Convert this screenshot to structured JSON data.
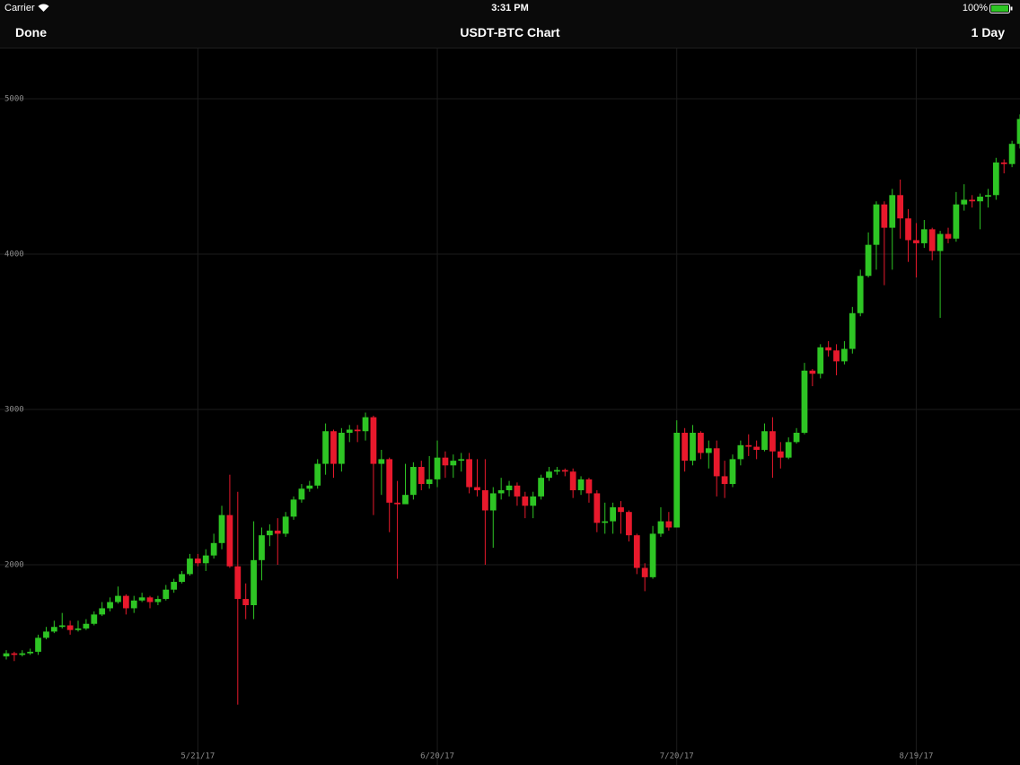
{
  "status_bar": {
    "carrier": "Carrier",
    "time": "3:31 PM",
    "battery": "100%"
  },
  "nav_bar": {
    "left_button": "Done",
    "title": "USDT-BTC Chart",
    "right_button": "1 Day"
  },
  "chart_data": {
    "type": "candlestick",
    "x": [
      "2017-04-27",
      "2017-04-28",
      "2017-04-29",
      "2017-04-30",
      "2017-05-01",
      "2017-05-02",
      "2017-05-03",
      "2017-05-04",
      "2017-05-05",
      "2017-05-06",
      "2017-05-07",
      "2017-05-08",
      "2017-05-09",
      "2017-05-10",
      "2017-05-11",
      "2017-05-12",
      "2017-05-13",
      "2017-05-14",
      "2017-05-15",
      "2017-05-16",
      "2017-05-17",
      "2017-05-18",
      "2017-05-19",
      "2017-05-20",
      "2017-05-21",
      "2017-05-22",
      "2017-05-23",
      "2017-05-24",
      "2017-05-25",
      "2017-05-26",
      "2017-05-27",
      "2017-05-28",
      "2017-05-29",
      "2017-05-30",
      "2017-05-31",
      "2017-06-01",
      "2017-06-02",
      "2017-06-03",
      "2017-06-04",
      "2017-06-05",
      "2017-06-06",
      "2017-06-07",
      "2017-06-08",
      "2017-06-09",
      "2017-06-10",
      "2017-06-11",
      "2017-06-12",
      "2017-06-13",
      "2017-06-14",
      "2017-06-15",
      "2017-06-16",
      "2017-06-17",
      "2017-06-18",
      "2017-06-19",
      "2017-06-20",
      "2017-06-21",
      "2017-06-22",
      "2017-06-23",
      "2017-06-24",
      "2017-06-25",
      "2017-06-26",
      "2017-06-27",
      "2017-06-28",
      "2017-06-29",
      "2017-06-30",
      "2017-07-01",
      "2017-07-02",
      "2017-07-03",
      "2017-07-04",
      "2017-07-05",
      "2017-07-06",
      "2017-07-07",
      "2017-07-08",
      "2017-07-09",
      "2017-07-10",
      "2017-07-11",
      "2017-07-12",
      "2017-07-13",
      "2017-07-14",
      "2017-07-15",
      "2017-07-16",
      "2017-07-17",
      "2017-07-18",
      "2017-07-19",
      "2017-07-20",
      "2017-07-21",
      "2017-07-22",
      "2017-07-23",
      "2017-07-24",
      "2017-07-25",
      "2017-07-26",
      "2017-07-27",
      "2017-07-28",
      "2017-07-29",
      "2017-07-30",
      "2017-07-31",
      "2017-08-01",
      "2017-08-02",
      "2017-08-03",
      "2017-08-04",
      "2017-08-05",
      "2017-08-06",
      "2017-08-07",
      "2017-08-08",
      "2017-08-09",
      "2017-08-10",
      "2017-08-11",
      "2017-08-12",
      "2017-08-13",
      "2017-08-14",
      "2017-08-15",
      "2017-08-16",
      "2017-08-17",
      "2017-08-18",
      "2017-08-19",
      "2017-08-20",
      "2017-08-21",
      "2017-08-22",
      "2017-08-23",
      "2017-08-24",
      "2017-08-25",
      "2017-08-26",
      "2017-08-27",
      "2017-08-28",
      "2017-08-29",
      "2017-08-30",
      "2017-08-31",
      "2017-09-01"
    ],
    "open": [
      1410,
      1430,
      1420,
      1430,
      1440,
      1530,
      1570,
      1600,
      1610,
      1580,
      1590,
      1620,
      1680,
      1720,
      1760,
      1800,
      1720,
      1770,
      1790,
      1760,
      1780,
      1840,
      1890,
      1940,
      2040,
      2010,
      2060,
      2140,
      2320,
      1990,
      1780,
      1740,
      2030,
      2190,
      2220,
      2200,
      2310,
      2420,
      2490,
      2510,
      2650,
      2860,
      2650,
      2850,
      2870,
      2860,
      2950,
      2650,
      2680,
      2400,
      2390,
      2450,
      2630,
      2520,
      2550,
      2690,
      2640,
      2670,
      2680,
      2500,
      2480,
      2350,
      2460,
      2480,
      2510,
      2440,
      2380,
      2440,
      2560,
      2600,
      2610,
      2600,
      2480,
      2550,
      2460,
      2270,
      2280,
      2370,
      2340,
      2190,
      1980,
      1920,
      2200,
      2280,
      2240,
      2850,
      2670,
      2850,
      2720,
      2750,
      2570,
      2520,
      2680,
      2770,
      2760,
      2740,
      2860,
      2730,
      2690,
      2790,
      2850,
      3250,
      3230,
      3400,
      3380,
      3310,
      3390,
      3620,
      3860,
      4060,
      4320,
      4170,
      4380,
      4230,
      4090,
      4070,
      4160,
      4020,
      4130,
      4100,
      4320,
      4350,
      4340,
      4370,
      4380,
      4590,
      4580,
      4710
    ],
    "high": [
      1450,
      1440,
      1450,
      1460,
      1550,
      1600,
      1640,
      1690,
      1640,
      1640,
      1650,
      1700,
      1760,
      1790,
      1860,
      1810,
      1800,
      1820,
      1800,
      1800,
      1870,
      1910,
      1960,
      2070,
      2070,
      2100,
      2200,
      2380,
      2580,
      2470,
      1880,
      2280,
      2240,
      2260,
      2300,
      2340,
      2440,
      2520,
      2540,
      2680,
      2910,
      2870,
      2880,
      2900,
      2900,
      2980,
      2960,
      2740,
      2690,
      2540,
      2650,
      2660,
      2670,
      2700,
      2800,
      2730,
      2710,
      2720,
      2720,
      2680,
      2680,
      2500,
      2560,
      2540,
      2530,
      2470,
      2470,
      2580,
      2630,
      2630,
      2620,
      2620,
      2570,
      2560,
      2480,
      2400,
      2400,
      2410,
      2350,
      2200,
      2010,
      2250,
      2370,
      2340,
      2930,
      2880,
      2900,
      2860,
      2800,
      2800,
      2670,
      2710,
      2800,
      2840,
      2800,
      2910,
      2950,
      2790,
      2820,
      2880,
      3300,
      3260,
      3420,
      3440,
      3420,
      3440,
      3660,
      3900,
      4140,
      4340,
      4340,
      4420,
      4480,
      4290,
      4200,
      4220,
      4170,
      4150,
      4170,
      4400,
      4450,
      4380,
      4390,
      4420,
      4620,
      4610,
      4730,
      4900
    ],
    "low": [
      1390,
      1380,
      1410,
      1420,
      1420,
      1520,
      1560,
      1590,
      1550,
      1570,
      1580,
      1610,
      1670,
      1700,
      1750,
      1680,
      1690,
      1760,
      1720,
      1740,
      1770,
      1820,
      1880,
      1930,
      1990,
      1960,
      2040,
      2100,
      1980,
      1100,
      1650,
      1650,
      1900,
      2120,
      2000,
      2180,
      2290,
      2400,
      2470,
      2490,
      2580,
      2560,
      2600,
      2790,
      2790,
      2800,
      2320,
      2450,
      2210,
      1910,
      2400,
      2420,
      2480,
      2490,
      2500,
      2560,
      2560,
      2600,
      2460,
      2440,
      2000,
      2110,
      2420,
      2440,
      2380,
      2300,
      2300,
      2420,
      2540,
      2580,
      2570,
      2430,
      2450,
      2400,
      2210,
      2200,
      2200,
      2200,
      2150,
      1940,
      1830,
      1910,
      2180,
      2220,
      2240,
      2600,
      2640,
      2680,
      2620,
      2440,
      2430,
      2500,
      2640,
      2700,
      2680,
      2730,
      2560,
      2620,
      2680,
      2780,
      2840,
      3150,
      3200,
      3340,
      3220,
      3290,
      3360,
      3600,
      3850,
      3900,
      3800,
      3900,
      4100,
      3950,
      3850,
      4040,
      3960,
      3590,
      4070,
      4080,
      4280,
      4300,
      4160,
      4300,
      4350,
      4520,
      4560,
      4680
    ],
    "close": [
      1430,
      1420,
      1430,
      1440,
      1530,
      1570,
      1600,
      1610,
      1580,
      1590,
      1620,
      1680,
      1720,
      1760,
      1800,
      1720,
      1770,
      1790,
      1760,
      1780,
      1840,
      1890,
      1940,
      2040,
      2010,
      2060,
      2140,
      2320,
      1990,
      1780,
      1740,
      2030,
      2190,
      2220,
      2200,
      2310,
      2420,
      2490,
      2510,
      2650,
      2860,
      2650,
      2850,
      2870,
      2860,
      2950,
      2650,
      2680,
      2400,
      2390,
      2450,
      2630,
      2520,
      2550,
      2690,
      2640,
      2670,
      2680,
      2500,
      2480,
      2350,
      2460,
      2480,
      2510,
      2440,
      2380,
      2440,
      2560,
      2600,
      2610,
      2600,
      2480,
      2550,
      2460,
      2270,
      2280,
      2370,
      2340,
      2190,
      1980,
      1920,
      2200,
      2280,
      2240,
      2850,
      2670,
      2850,
      2720,
      2750,
      2570,
      2520,
      2680,
      2770,
      2760,
      2740,
      2860,
      2730,
      2690,
      2790,
      2850,
      3250,
      3230,
      3400,
      3380,
      3310,
      3390,
      3620,
      3860,
      4060,
      4320,
      4170,
      4380,
      4230,
      4090,
      4070,
      4160,
      4020,
      4130,
      4100,
      4320,
      4350,
      4340,
      4370,
      4380,
      4590,
      4580,
      4710,
      4870
    ],
    "up_color": "#2ec524",
    "down_color": "#e8192c",
    "ylim": [
      711,
      5324
    ],
    "yticks": [
      2000,
      3000,
      4000,
      5000
    ],
    "xticks": [
      {
        "value": "2017-05-21",
        "label": "5/21/17"
      },
      {
        "value": "2017-06-20",
        "label": "6/20/17"
      },
      {
        "value": "2017-07-20",
        "label": "7/20/17"
      },
      {
        "value": "2017-08-19",
        "label": "8/19/17"
      }
    ],
    "grid": true
  }
}
